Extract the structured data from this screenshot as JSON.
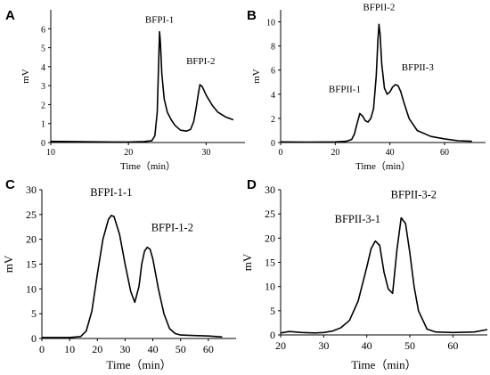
{
  "chart_data": [
    {
      "panel": "A",
      "type": "line",
      "xlabel": "Time（min）",
      "ylabel": "mV",
      "xlim": [
        10,
        35
      ],
      "ylim": [
        0,
        7
      ],
      "xticks": [
        10,
        20,
        30
      ],
      "yticks": [
        0,
        1,
        2,
        3,
        4,
        5,
        6
      ],
      "grid": false,
      "annotations": [
        {
          "text": "BFPI-1",
          "x": 24.0,
          "y": 5.85
        },
        {
          "text": "BFPI-2",
          "x": 29.3,
          "y": 3.1
        }
      ],
      "series": [
        {
          "x": [
            10,
            14,
            18,
            20,
            22,
            23,
            23.4,
            23.7,
            23.9,
            24.0,
            24.1,
            24.3,
            24.6,
            25,
            25.5,
            26,
            26.7,
            27.5,
            28.0,
            28.4,
            28.7,
            29.0,
            29.2,
            29.5,
            30,
            30.8,
            31.5,
            32.5,
            33.5
          ],
          "y": [
            0.06,
            0.04,
            0.03,
            0.03,
            0.05,
            0.1,
            0.35,
            1.6,
            4.4,
            5.85,
            5.3,
            3.6,
            2.3,
            1.6,
            1.2,
            0.9,
            0.65,
            0.6,
            0.7,
            1.1,
            1.8,
            2.6,
            3.05,
            2.95,
            2.5,
            1.95,
            1.6,
            1.35,
            1.2
          ]
        }
      ]
    },
    {
      "panel": "B",
      "type": "line",
      "xlabel": "Time（min）",
      "ylabel": "mV",
      "xlim": [
        0,
        75
      ],
      "ylim": [
        0,
        11
      ],
      "xticks": [
        0,
        20,
        40,
        60
      ],
      "yticks": [
        0,
        2,
        4,
        6,
        8,
        10
      ],
      "grid": false,
      "annotations": [
        {
          "text": "BFPII-1",
          "x": 29,
          "y": 2.4
        },
        {
          "text": "BFPII-2",
          "x": 36,
          "y": 9.8
        },
        {
          "text": "BFPII-3",
          "x": 42,
          "y": 4.8
        }
      ],
      "series": [
        {
          "x": [
            0,
            10,
            20,
            24,
            26,
            27,
            28,
            29,
            30,
            31,
            32,
            33,
            34,
            35,
            35.6,
            36,
            36.4,
            37,
            38,
            39,
            40,
            41,
            42,
            43,
            44,
            45,
            47,
            50,
            55,
            60,
            65,
            70
          ],
          "y": [
            0.05,
            0.03,
            0.05,
            0.1,
            0.25,
            0.7,
            1.6,
            2.4,
            2.2,
            1.8,
            1.7,
            2.0,
            2.8,
            5.5,
            8.5,
            9.8,
            9.0,
            6.5,
            4.5,
            4.0,
            4.2,
            4.6,
            4.8,
            4.7,
            4.2,
            3.4,
            2.0,
            1.0,
            0.5,
            0.3,
            0.15,
            0.1
          ]
        }
      ]
    },
    {
      "panel": "C",
      "type": "line",
      "xlabel": "Time（min）",
      "ylabel": "mV",
      "xlim": [
        0,
        70
      ],
      "ylim": [
        0,
        30
      ],
      "xticks": [
        0,
        10,
        20,
        30,
        40,
        50,
        60
      ],
      "yticks": [
        0,
        5,
        10,
        15,
        20,
        25,
        30
      ],
      "grid": false,
      "annotations": [
        {
          "text": "BFPI-1-1",
          "x": 25,
          "y": 24.8
        },
        {
          "text": "BFPI-1-2",
          "x": 38,
          "y": 18.4
        }
      ],
      "series": [
        {
          "x": [
            0,
            10,
            14,
            16,
            18,
            20,
            22,
            24,
            25,
            26,
            28,
            30,
            32,
            33.5,
            35,
            36,
            37,
            38,
            39,
            40,
            42,
            44,
            46,
            48,
            50,
            55,
            60,
            65
          ],
          "y": [
            0.2,
            0.2,
            0.4,
            1.5,
            5.5,
            13.0,
            20.0,
            24.0,
            24.8,
            24.6,
            21.0,
            15.0,
            9.5,
            7.3,
            10.5,
            15.0,
            17.6,
            18.4,
            18.0,
            16.0,
            10.0,
            5.0,
            2.0,
            1.0,
            0.7,
            0.6,
            0.5,
            0.3
          ]
        }
      ]
    },
    {
      "panel": "D",
      "type": "line",
      "xlabel": "Time（min）",
      "ylabel": "mV",
      "xlim": [
        20,
        68
      ],
      "ylim": [
        0,
        30
      ],
      "xticks": [
        20,
        30,
        40,
        50,
        60
      ],
      "yticks": [
        0,
        5,
        10,
        15,
        20,
        25,
        30
      ],
      "grid": false,
      "annotations": [
        {
          "text": "BFPII-3-1",
          "x": 42,
          "y": 19.5
        },
        {
          "text": "BFPII-3-2",
          "x": 48,
          "y": 24.2
        }
      ],
      "series": [
        {
          "x": [
            20,
            22,
            25,
            28,
            30,
            32,
            34,
            36,
            38,
            40,
            41,
            42,
            43,
            44,
            45,
            46,
            47,
            48,
            49,
            50,
            51,
            52,
            54,
            56,
            60,
            65,
            68
          ],
          "y": [
            0.4,
            0.7,
            0.5,
            0.4,
            0.5,
            0.8,
            1.5,
            3.0,
            7.0,
            14.0,
            17.8,
            19.4,
            18.5,
            13.0,
            9.5,
            8.6,
            17.5,
            24.2,
            23.0,
            17.0,
            10.0,
            5.0,
            1.2,
            0.6,
            0.5,
            0.6,
            1.1
          ]
        }
      ]
    }
  ]
}
